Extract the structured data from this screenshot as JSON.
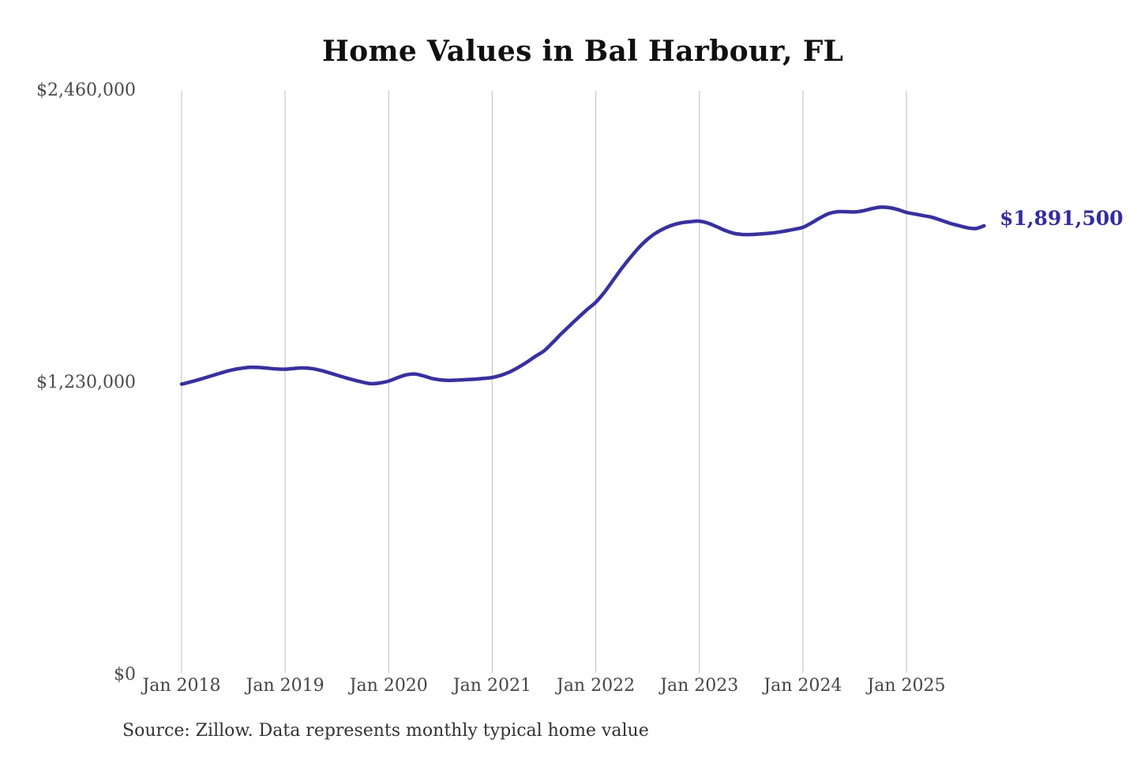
{
  "title": "Home Values in Bal Harbour, FL",
  "source_note": "Source: Zillow. Data represents monthly typical home value",
  "colors": {
    "line": "#37319e",
    "grid": "#c8c8c8",
    "title_text": "#101010",
    "axis_text": "#4a4a4a",
    "accent_label": "#332d9e",
    "source_text": "#323232",
    "background": "#ffffff"
  },
  "chart_data": {
    "type": "line",
    "title": "Home Values in Bal Harbour, FL",
    "unit": "USD",
    "ylim": [
      0,
      2460000
    ],
    "grid": "vertical-only",
    "legend": "none",
    "yticks": [
      {
        "value": 2460000,
        "label": "$2,460,000"
      },
      {
        "value": 1230000,
        "label": "$1,230,000"
      },
      {
        "value": 0,
        "label": "$0"
      }
    ],
    "xticks": [
      {
        "month": "2018-01",
        "label": "Jan 2018"
      },
      {
        "month": "2019-01",
        "label": "Jan 2019"
      },
      {
        "month": "2020-01",
        "label": "Jan 2020"
      },
      {
        "month": "2021-01",
        "label": "Jan 2021"
      },
      {
        "month": "2022-01",
        "label": "Jan 2022"
      },
      {
        "month": "2023-01",
        "label": "Jan 2023"
      },
      {
        "month": "2024-01",
        "label": "Jan 2024"
      },
      {
        "month": "2025-01",
        "label": "Jan 2025"
      }
    ],
    "annotation": {
      "text": "$1,891,500",
      "value": 1891500,
      "position": "end-of-line"
    },
    "series": [
      {
        "name": "Typical home value",
        "x": [
          "2018-01",
          "2018-02",
          "2018-03",
          "2018-04",
          "2018-05",
          "2018-06",
          "2018-07",
          "2018-08",
          "2018-09",
          "2018-10",
          "2018-11",
          "2018-12",
          "2019-01",
          "2019-02",
          "2019-03",
          "2019-04",
          "2019-05",
          "2019-06",
          "2019-07",
          "2019-08",
          "2019-09",
          "2019-10",
          "2019-11",
          "2019-12",
          "2020-01",
          "2020-02",
          "2020-03",
          "2020-04",
          "2020-05",
          "2020-06",
          "2020-07",
          "2020-08",
          "2020-09",
          "2020-10",
          "2020-11",
          "2020-12",
          "2021-01",
          "2021-02",
          "2021-03",
          "2021-04",
          "2021-05",
          "2021-06",
          "2021-07",
          "2021-08",
          "2021-09",
          "2021-10",
          "2021-11",
          "2021-12",
          "2022-01",
          "2022-02",
          "2022-03",
          "2022-04",
          "2022-05",
          "2022-06",
          "2022-07",
          "2022-08",
          "2022-09",
          "2022-10",
          "2022-11",
          "2022-12",
          "2023-01",
          "2023-02",
          "2023-03",
          "2023-04",
          "2023-05",
          "2023-06",
          "2023-07",
          "2023-08",
          "2023-09",
          "2023-10",
          "2023-11",
          "2023-12",
          "2024-01",
          "2024-02",
          "2024-03",
          "2024-04",
          "2024-05",
          "2024-06",
          "2024-07",
          "2024-08",
          "2024-09",
          "2024-10",
          "2024-11",
          "2024-12",
          "2025-01",
          "2025-02",
          "2025-03",
          "2025-04",
          "2025-05",
          "2025-06",
          "2025-07",
          "2025-08",
          "2025-09",
          "2025-10"
        ],
        "values": [
          1225000,
          1234000,
          1244000,
          1255000,
          1266000,
          1277000,
          1286000,
          1292000,
          1296000,
          1295000,
          1292000,
          1289000,
          1288000,
          1291000,
          1293000,
          1291000,
          1284000,
          1274000,
          1263000,
          1252000,
          1242000,
          1233000,
          1227000,
          1230000,
          1238000,
          1252000,
          1264000,
          1268000,
          1260000,
          1249000,
          1243000,
          1241000,
          1242000,
          1244000,
          1246000,
          1249000,
          1253000,
          1262000,
          1276000,
          1295000,
          1317000,
          1342000,
          1365000,
          1400000,
          1437000,
          1472000,
          1506000,
          1539000,
          1570000,
          1612000,
          1662000,
          1712000,
          1758000,
          1800000,
          1835000,
          1862000,
          1882000,
          1896000,
          1905000,
          1909000,
          1911000,
          1903000,
          1888000,
          1872000,
          1860000,
          1855000,
          1855000,
          1857000,
          1860000,
          1864000,
          1870000,
          1877000,
          1885000,
          1904000,
          1925000,
          1943000,
          1951000,
          1951000,
          1950000,
          1955000,
          1964000,
          1970000,
          1968000,
          1960000,
          1948000,
          1941000,
          1934000,
          1927000,
          1915000,
          1903000,
          1893000,
          1884000,
          1880000,
          1891500
        ]
      }
    ]
  }
}
